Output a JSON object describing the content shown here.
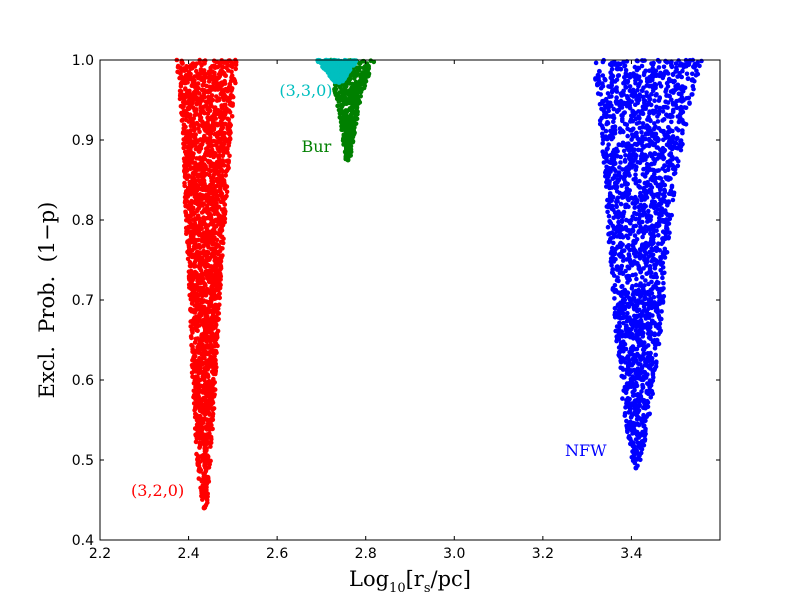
{
  "chart_data": {
    "type": "scatter",
    "title": "",
    "xlabel": {
      "prefix": "Log",
      "sub": "10",
      "bracket_open": "[r",
      "bracket_sub": "s",
      "suffix": "/pc]"
    },
    "ylabel": "Excl.  Prob.  (1−p)",
    "xlim": [
      2.2,
      3.6
    ],
    "ylim": [
      0.4,
      1.0
    ],
    "xticks": [
      2.2,
      2.4,
      2.6,
      2.8,
      3.0,
      3.2,
      3.4
    ],
    "xtick_labels": [
      "2.2",
      "2.4",
      "2.6",
      "2.8",
      "3.0",
      "3.2",
      "3.4"
    ],
    "yticks": [
      0.4,
      0.5,
      0.6,
      0.7,
      0.8,
      0.9,
      1.0
    ],
    "ytick_labels": [
      "0.4",
      "0.5",
      "0.6",
      "0.7",
      "0.8",
      "0.9",
      "1.0"
    ],
    "grid": false,
    "legend": "none",
    "series": [
      {
        "name": "(3,2,0)",
        "color": "#ff0000",
        "tip": [
          2.435,
          0.44
        ],
        "envelope": [
          {
            "y": 0.44,
            "xmin": 2.43,
            "xmax": 2.442
          },
          {
            "y": 0.5,
            "xmin": 2.418,
            "xmax": 2.45
          },
          {
            "y": 0.6,
            "xmin": 2.408,
            "xmax": 2.462
          },
          {
            "y": 0.7,
            "xmin": 2.403,
            "xmax": 2.47
          },
          {
            "y": 0.8,
            "xmin": 2.393,
            "xmax": 2.483
          },
          {
            "y": 0.9,
            "xmin": 2.388,
            "xmax": 2.495
          },
          {
            "y": 1.0,
            "xmin": 2.373,
            "xmax": 2.51
          }
        ]
      },
      {
        "name": "NFW",
        "color": "#0000ff",
        "tip": [
          3.41,
          0.49
        ],
        "envelope": [
          {
            "y": 0.49,
            "xmin": 3.405,
            "xmax": 3.418
          },
          {
            "y": 0.55,
            "xmin": 3.385,
            "xmax": 3.44
          },
          {
            "y": 0.65,
            "xmin": 3.365,
            "xmax": 3.465
          },
          {
            "y": 0.75,
            "xmin": 3.352,
            "xmax": 3.48
          },
          {
            "y": 0.85,
            "xmin": 3.34,
            "xmax": 3.5
          },
          {
            "y": 0.95,
            "xmin": 3.325,
            "xmax": 3.535
          },
          {
            "y": 1.0,
            "xmin": 3.31,
            "xmax": 3.56
          }
        ]
      },
      {
        "name": "Bur",
        "color": "#008000",
        "tip": [
          2.76,
          0.875
        ],
        "envelope": [
          {
            "y": 0.875,
            "xmin": 2.755,
            "xmax": 2.765
          },
          {
            "y": 0.9,
            "xmin": 2.748,
            "xmax": 2.772
          },
          {
            "y": 0.94,
            "xmin": 2.737,
            "xmax": 2.785
          },
          {
            "y": 0.97,
            "xmin": 2.727,
            "xmax": 2.8
          },
          {
            "y": 1.0,
            "xmin": 2.71,
            "xmax": 2.82
          }
        ]
      },
      {
        "name": "(3,3,0)",
        "color": "#00bfbf",
        "tip": [
          2.74,
          0.972
        ],
        "envelope": [
          {
            "y": 0.972,
            "xmin": 2.73,
            "xmax": 2.748
          },
          {
            "y": 0.985,
            "xmin": 2.712,
            "xmax": 2.762
          },
          {
            "y": 1.0,
            "xmin": 2.688,
            "xmax": 2.782
          }
        ]
      }
    ],
    "annotations": [
      {
        "text": "(3,2,0)",
        "x": 2.27,
        "y": 0.455,
        "color": "#ff0000"
      },
      {
        "text": "NFW",
        "x": 3.25,
        "y": 0.505,
        "color": "#0000ff"
      },
      {
        "text": "Bur",
        "x": 2.655,
        "y": 0.885,
        "color": "#008000"
      },
      {
        "text": "(3,3,0)",
        "x": 2.605,
        "y": 0.955,
        "color": "#00bfbf"
      }
    ]
  }
}
